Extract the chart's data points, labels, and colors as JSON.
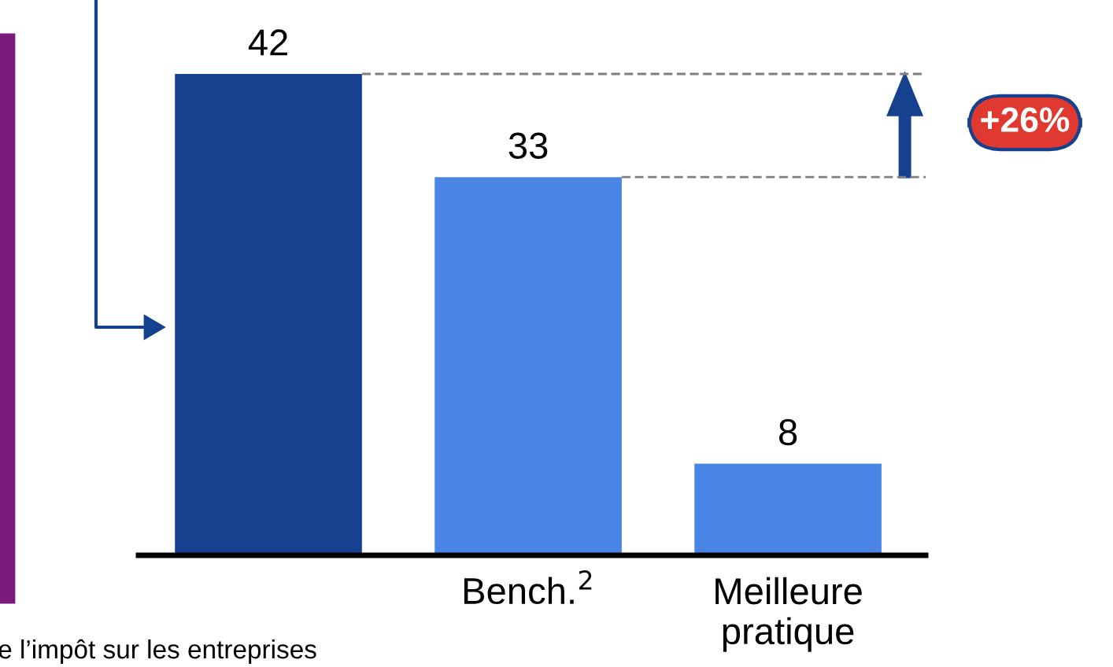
{
  "chart_data": {
    "type": "bar",
    "categories": [
      null,
      "Bench.$^{2}$",
      "Meilleure\npratique"
    ],
    "values": [
      42,
      33,
      8
    ],
    "colors": [
      "#16418e",
      "#4a84e4",
      "#4a84e4"
    ],
    "data_labels": true,
    "grid": false,
    "ref_lines": [
      {
        "axis": "y",
        "value": 42,
        "color": "#7f7f7f",
        "line_style": "dashed"
      },
      {
        "axis": "y",
        "value": 33,
        "color": "#7f7f7f",
        "line_style": "dashed"
      }
    ],
    "annotations": [
      "+26%",
      "e l’impôt sur les entreprises"
    ]
  }
}
